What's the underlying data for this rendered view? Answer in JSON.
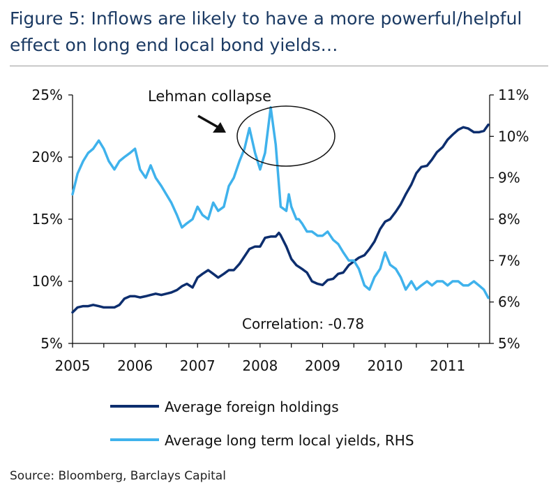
{
  "title": "Figure 5: Inflows are likely to have a more powerful/helpful effect on long end local bond yields…",
  "source": "Source: Bloomberg, Barclays Capital",
  "colors": {
    "foreign": "#0d2e6e",
    "yields": "#3fb2ec",
    "axis": "#000000"
  },
  "chart_data": {
    "type": "line",
    "title": "Figure 5: Inflows are likely to have a more powerful/helpful effect on long end local bond yields…",
    "xlabel": "",
    "ylabel": "",
    "x_ticks": [
      "2005",
      "2006",
      "2007",
      "2008",
      "2009",
      "2010",
      "2011"
    ],
    "x_range": [
      2005.0,
      2011.65
    ],
    "y_left_ticks": [
      "5%",
      "10%",
      "15%",
      "20%",
      "25%"
    ],
    "y_left_range": [
      5,
      25
    ],
    "y_right_ticks": [
      "5%",
      "6%",
      "7%",
      "8%",
      "9%",
      "10%",
      "11%"
    ],
    "y_right_range": [
      5,
      11
    ],
    "annotations": {
      "lehman": "Lehman collapse",
      "correlation": "Correlation:  -0.78"
    },
    "series": [
      {
        "name": "Average foreign holdings",
        "axis": "left",
        "x": [
          2005.0,
          2005.08,
          2005.17,
          2005.25,
          2005.33,
          2005.42,
          2005.5,
          2005.58,
          2005.67,
          2005.75,
          2005.83,
          2005.92,
          2006.0,
          2006.08,
          2006.17,
          2006.25,
          2006.33,
          2006.42,
          2006.5,
          2006.58,
          2006.67,
          2006.75,
          2006.83,
          2006.92,
          2007.0,
          2007.08,
          2007.17,
          2007.25,
          2007.33,
          2007.42,
          2007.5,
          2007.58,
          2007.67,
          2007.75,
          2007.83,
          2007.92,
          2008.0,
          2008.08,
          2008.17,
          2008.25,
          2008.3,
          2008.33,
          2008.42,
          2008.5,
          2008.58,
          2008.67,
          2008.75,
          2008.83,
          2008.92,
          2009.0,
          2009.08,
          2009.17,
          2009.25,
          2009.33,
          2009.42,
          2009.5,
          2009.58,
          2009.67,
          2009.75,
          2009.83,
          2009.92,
          2010.0,
          2010.08,
          2010.17,
          2010.25,
          2010.33,
          2010.42,
          2010.5,
          2010.58,
          2010.67,
          2010.75,
          2010.83,
          2010.92,
          2011.0,
          2011.08,
          2011.17,
          2011.25,
          2011.33,
          2011.42,
          2011.5,
          2011.58,
          2011.65
        ],
        "values": [
          7.5,
          7.9,
          8.0,
          8.0,
          8.1,
          8.0,
          7.9,
          7.9,
          7.9,
          8.1,
          8.6,
          8.8,
          8.8,
          8.7,
          8.8,
          8.9,
          9.0,
          8.9,
          9.0,
          9.1,
          9.3,
          9.6,
          9.8,
          9.5,
          10.3,
          10.6,
          10.9,
          10.6,
          10.3,
          10.6,
          10.9,
          10.9,
          11.4,
          12.0,
          12.6,
          12.8,
          12.8,
          13.5,
          13.6,
          13.6,
          13.9,
          13.7,
          12.8,
          11.8,
          11.3,
          11.0,
          10.7,
          10.0,
          9.8,
          9.7,
          10.1,
          10.2,
          10.6,
          10.7,
          11.3,
          11.6,
          11.9,
          12.1,
          12.6,
          13.2,
          14.2,
          14.8,
          15.0,
          15.6,
          16.2,
          17.0,
          17.8,
          18.7,
          19.2,
          19.3,
          19.8,
          20.4,
          20.8,
          21.4,
          21.8,
          22.2,
          22.4,
          22.3,
          22.0,
          22.0,
          22.1,
          22.6
        ]
      },
      {
        "name": "Average long term local yields, RHS",
        "axis": "right",
        "x": [
          2005.0,
          2005.08,
          2005.17,
          2005.25,
          2005.33,
          2005.42,
          2005.5,
          2005.58,
          2005.67,
          2005.75,
          2005.83,
          2005.92,
          2006.0,
          2006.08,
          2006.17,
          2006.25,
          2006.33,
          2006.42,
          2006.5,
          2006.58,
          2006.67,
          2006.75,
          2006.83,
          2006.92,
          2007.0,
          2007.08,
          2007.17,
          2007.25,
          2007.33,
          2007.42,
          2007.5,
          2007.58,
          2007.67,
          2007.75,
          2007.83,
          2007.92,
          2008.0,
          2008.08,
          2008.17,
          2008.25,
          2008.33,
          2008.42,
          2008.46,
          2008.5,
          2008.58,
          2008.62,
          2008.67,
          2008.75,
          2008.83,
          2008.92,
          2009.0,
          2009.08,
          2009.17,
          2009.25,
          2009.33,
          2009.42,
          2009.5,
          2009.58,
          2009.67,
          2009.75,
          2009.83,
          2009.92,
          2010.0,
          2010.08,
          2010.17,
          2010.25,
          2010.33,
          2010.42,
          2010.5,
          2010.58,
          2010.67,
          2010.75,
          2010.83,
          2010.92,
          2011.0,
          2011.08,
          2011.17,
          2011.25,
          2011.33,
          2011.42,
          2011.5,
          2011.58,
          2011.65
        ],
        "values": [
          8.6,
          9.1,
          9.4,
          9.6,
          9.7,
          9.9,
          9.7,
          9.4,
          9.2,
          9.4,
          9.5,
          9.6,
          9.7,
          9.2,
          9.0,
          9.3,
          9.0,
          8.8,
          8.6,
          8.4,
          8.1,
          7.8,
          7.9,
          8.0,
          8.3,
          8.1,
          8.0,
          8.4,
          8.2,
          8.3,
          8.8,
          9.0,
          9.4,
          9.7,
          10.2,
          9.6,
          9.2,
          9.6,
          10.7,
          9.8,
          8.3,
          8.2,
          8.6,
          8.3,
          8.0,
          8.0,
          7.9,
          7.7,
          7.7,
          7.6,
          7.6,
          7.7,
          7.5,
          7.4,
          7.2,
          7.0,
          7.0,
          6.8,
          6.4,
          6.3,
          6.6,
          6.8,
          7.2,
          6.9,
          6.8,
          6.6,
          6.3,
          6.5,
          6.3,
          6.4,
          6.5,
          6.4,
          6.5,
          6.5,
          6.4,
          6.5,
          6.5,
          6.4,
          6.4,
          6.5,
          6.4,
          6.3,
          6.1
        ]
      }
    ],
    "legend": {
      "position": "bottom",
      "labels": [
        "Average foreign holdings",
        "Average long term local yields, RHS"
      ]
    }
  }
}
